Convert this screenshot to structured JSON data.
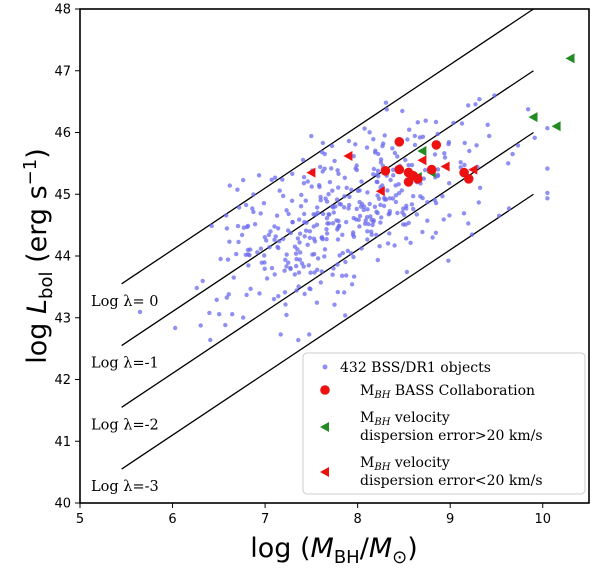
{
  "chart_data": {
    "type": "scatter",
    "xlabel": "log (M_BH/M_⊙)",
    "ylabel": "log L_bol (erg s^-1)",
    "xlim": [
      5,
      10.5
    ],
    "ylim": [
      40,
      48
    ],
    "xticks": [
      "5",
      "6",
      "7",
      "8",
      "9",
      "10"
    ],
    "yticks": [
      "40",
      "41",
      "42",
      "43",
      "44",
      "45",
      "46",
      "47",
      "48"
    ],
    "eddington_lines": [
      {
        "label": "Log λ= 0",
        "offset": 38.1
      },
      {
        "label": "Log λ=-1",
        "offset": 37.1
      },
      {
        "label": "Log λ=-2",
        "offset": 36.1
      },
      {
        "label": "Log λ=-3",
        "offset": 35.1
      }
    ],
    "line_x_range": [
      5.45,
      9.9
    ],
    "legend": {
      "position": "lower-right",
      "entries": [
        {
          "label": "432 BSS/DR1 objects",
          "color": "#6b6bee",
          "marker": "circle-small"
        },
        {
          "label": "M_BH BASS Collaboration",
          "color": "#ee1111",
          "marker": "circle"
        },
        {
          "label_lines": [
            "M_BH velocity",
            "dispersion error>20 km/s"
          ],
          "color": "#228b22",
          "marker": "triangle-left"
        },
        {
          "label_lines": [
            "M_BH velocity",
            "dispersion error<20 km/s"
          ],
          "color": "#ee1111",
          "marker": "triangle-left"
        }
      ]
    },
    "series": [
      {
        "name": "432 BSS/DR1 objects",
        "color": "#6b6bee",
        "generator": {
          "count": 432,
          "x_mean": 7.9,
          "x_sd": 0.75,
          "slope": 0.55,
          "intercept": 40.35,
          "scatter": 0.62,
          "seed": 7
        }
      },
      {
        "name": "M_BH BASS Collaboration",
        "color": "#ee1111",
        "points": [
          [
            8.45,
            45.85
          ],
          [
            8.85,
            45.8
          ],
          [
            8.45,
            45.4
          ],
          [
            8.55,
            45.35
          ],
          [
            8.6,
            45.3
          ],
          [
            8.65,
            45.25
          ],
          [
            8.55,
            45.2
          ],
          [
            8.8,
            45.4
          ],
          [
            9.15,
            45.35
          ],
          [
            9.2,
            45.25
          ],
          [
            8.3,
            45.38
          ]
        ]
      },
      {
        "name": "M_BH velocity dispersion error>20 km/s",
        "color": "#228b22",
        "points": [
          [
            10.3,
            47.2
          ],
          [
            9.9,
            46.25
          ],
          [
            10.15,
            46.1
          ],
          [
            8.7,
            45.7
          ],
          [
            8.65,
            45.28
          ],
          [
            8.8,
            45.35
          ]
        ]
      },
      {
        "name": "M_BH velocity dispersion error<20 km/s",
        "color": "#ee1111",
        "points": [
          [
            7.5,
            45.35
          ],
          [
            7.9,
            45.62
          ],
          [
            8.25,
            45.05
          ],
          [
            8.7,
            45.55
          ],
          [
            8.95,
            45.45
          ],
          [
            9.25,
            45.4
          ]
        ]
      }
    ]
  }
}
